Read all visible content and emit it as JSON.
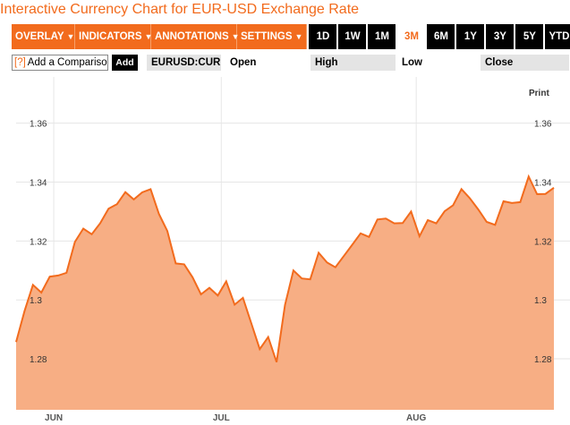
{
  "title": "Interactive Currency Chart for EUR-USD Exchange Rate",
  "menus": [
    {
      "label": "OVERLAY"
    },
    {
      "label": "INDICATORS"
    },
    {
      "label": "ANNOTATIONS"
    },
    {
      "label": "SETTINGS"
    }
  ],
  "menu_caret": "▼",
  "ranges": [
    "1D",
    "1W",
    "1M",
    "3M",
    "6M",
    "1Y",
    "3Y",
    "5Y",
    "YTD"
  ],
  "active_range": "3M",
  "comparison": {
    "help": "[?]",
    "placeholder": "Add a Comparison",
    "add_label": "Add"
  },
  "ticker": "EURUSD:CUR",
  "ohlc_labels": {
    "open": "Open",
    "high": "High",
    "low": "Low",
    "close": "Close"
  },
  "print_label": "Print",
  "colors": {
    "accent": "#f26b1d",
    "line": "#f26b1d",
    "fill": "#f7ae84"
  },
  "chart_data": {
    "type": "area",
    "x_labels": [
      "JUN",
      "JUL",
      "AUG"
    ],
    "ylim": [
      1.2627,
      1.3757
    ],
    "yticks": [
      1.28,
      1.3,
      1.32,
      1.34,
      1.36
    ],
    "ytick_labels": [
      "1.28",
      "1.3",
      "1.32",
      "1.34",
      "1.36"
    ],
    "grid": true,
    "series": [
      {
        "values": [
          1.2857,
          1.2962,
          1.3051,
          1.3025,
          1.3079,
          1.3083,
          1.3092,
          1.3197,
          1.3242,
          1.3223,
          1.326,
          1.331,
          1.3325,
          1.3366,
          1.3341,
          1.3365,
          1.3376,
          1.3292,
          1.3234,
          1.3124,
          1.3121,
          1.3077,
          1.3019,
          1.3041,
          1.3015,
          1.3063,
          1.2984,
          1.3007,
          1.292,
          1.2833,
          1.2874,
          1.2789,
          1.2983,
          1.31,
          1.3073,
          1.307,
          1.316,
          1.3127,
          1.3111,
          1.3149,
          1.3187,
          1.3226,
          1.3214,
          1.3273,
          1.3276,
          1.326,
          1.3261,
          1.33,
          1.3216,
          1.3271,
          1.326,
          1.3301,
          1.3321,
          1.3376,
          1.3345,
          1.3307,
          1.3265,
          1.3255,
          1.3335,
          1.3329,
          1.3332,
          1.3419,
          1.3359,
          1.336,
          1.3381
        ]
      }
    ]
  }
}
